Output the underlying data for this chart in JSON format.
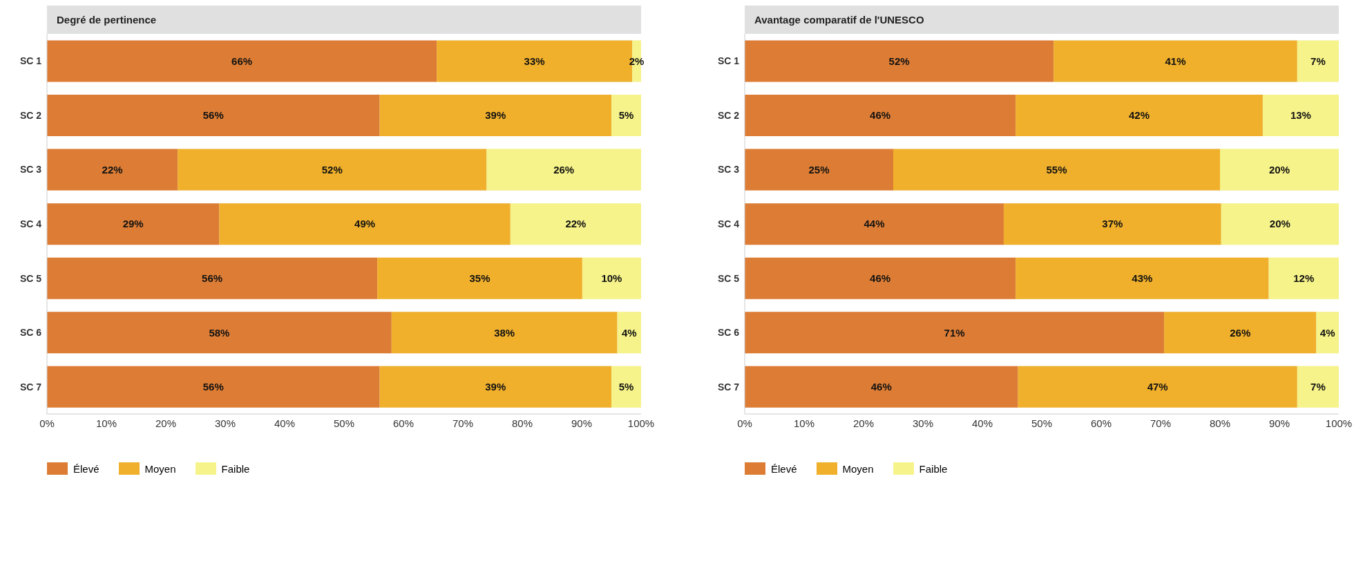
{
  "chart_data": [
    {
      "type": "bar",
      "orientation": "horizontal",
      "stacked": true,
      "title": "Degré de pertinence",
      "categories": [
        "SC 1",
        "SC 2",
        "SC 3",
        "SC 4",
        "SC 5",
        "SC 6",
        "SC 7"
      ],
      "series": [
        {
          "name": "Élevé",
          "color": "#dd7d35",
          "values": [
            65.6,
            56,
            22,
            29,
            55.6,
            58,
            56
          ],
          "value_labels": [
            "66%",
            "56%",
            "22%",
            "29%",
            "56%",
            "58%",
            "56%"
          ]
        },
        {
          "name": "Moyen",
          "color": "#f0b02c",
          "values": [
            32.9,
            39,
            52,
            49,
            34.5,
            38,
            39
          ],
          "value_labels": [
            "33%",
            "39%",
            "52%",
            "49%",
            "35%",
            "38%",
            "39%"
          ]
        },
        {
          "name": "Faible",
          "color": "#f6f38a",
          "values": [
            1.5,
            5,
            26,
            22,
            9.9,
            4,
            5
          ],
          "value_labels": [
            "2%",
            "5%",
            "26%",
            "22%",
            "10%",
            "4%",
            "5%"
          ]
        }
      ],
      "xlim": [
        0,
        100
      ],
      "xticks": [
        {
          "value": 0,
          "label": "0%"
        },
        {
          "value": 10,
          "label": "10%"
        },
        {
          "value": 20,
          "label": "20%"
        },
        {
          "value": 30,
          "label": "30%"
        },
        {
          "value": 40,
          "label": "40%"
        },
        {
          "value": 50,
          "label": "50%"
        },
        {
          "value": 60,
          "label": "60%"
        },
        {
          "value": 70,
          "label": "70%"
        },
        {
          "value": 80,
          "label": "80%"
        },
        {
          "value": 90,
          "label": "90%"
        },
        {
          "value": 100,
          "label": "100%"
        }
      ],
      "grid": false,
      "legend": "bottom left"
    },
    {
      "type": "bar",
      "orientation": "horizontal",
      "stacked": true,
      "title": "Avantage comparatif de l'UNESCO",
      "categories": [
        "SC 1",
        "SC 2",
        "SC 3",
        "SC 4",
        "SC 5",
        "SC 6",
        "SC 7"
      ],
      "series": [
        {
          "name": "Élevé",
          "color": "#dd7d35",
          "values": [
            52,
            45.6,
            25,
            43.6,
            45.6,
            70.6,
            46
          ],
          "value_labels": [
            "52%",
            "46%",
            "25%",
            "44%",
            "46%",
            "71%",
            "46%"
          ]
        },
        {
          "name": "Moyen",
          "color": "#f0b02c",
          "values": [
            41,
            41.6,
            55,
            36.6,
            42.6,
            25.6,
            47
          ],
          "value_labels": [
            "41%",
            "42%",
            "55%",
            "37%",
            "43%",
            "26%",
            "47%"
          ]
        },
        {
          "name": "Faible",
          "color": "#f6f38a",
          "values": [
            7,
            12.8,
            20,
            19.8,
            11.8,
            3.8,
            7
          ],
          "value_labels": [
            "7%",
            "13%",
            "20%",
            "20%",
            "12%",
            "4%",
            "7%"
          ]
        }
      ],
      "xlim": [
        0,
        100
      ],
      "xticks": [
        {
          "value": 0,
          "label": "0%"
        },
        {
          "value": 10,
          "label": "10%"
        },
        {
          "value": 20,
          "label": "20%"
        },
        {
          "value": 30,
          "label": "30%"
        },
        {
          "value": 40,
          "label": "40%"
        },
        {
          "value": 50,
          "label": "50%"
        },
        {
          "value": 60,
          "label": "60%"
        },
        {
          "value": 70,
          "label": "70%"
        },
        {
          "value": 80,
          "label": "80%"
        },
        {
          "value": 90,
          "label": "90%"
        },
        {
          "value": 100,
          "label": "100%"
        }
      ],
      "grid": false,
      "legend": "bottom left"
    }
  ]
}
